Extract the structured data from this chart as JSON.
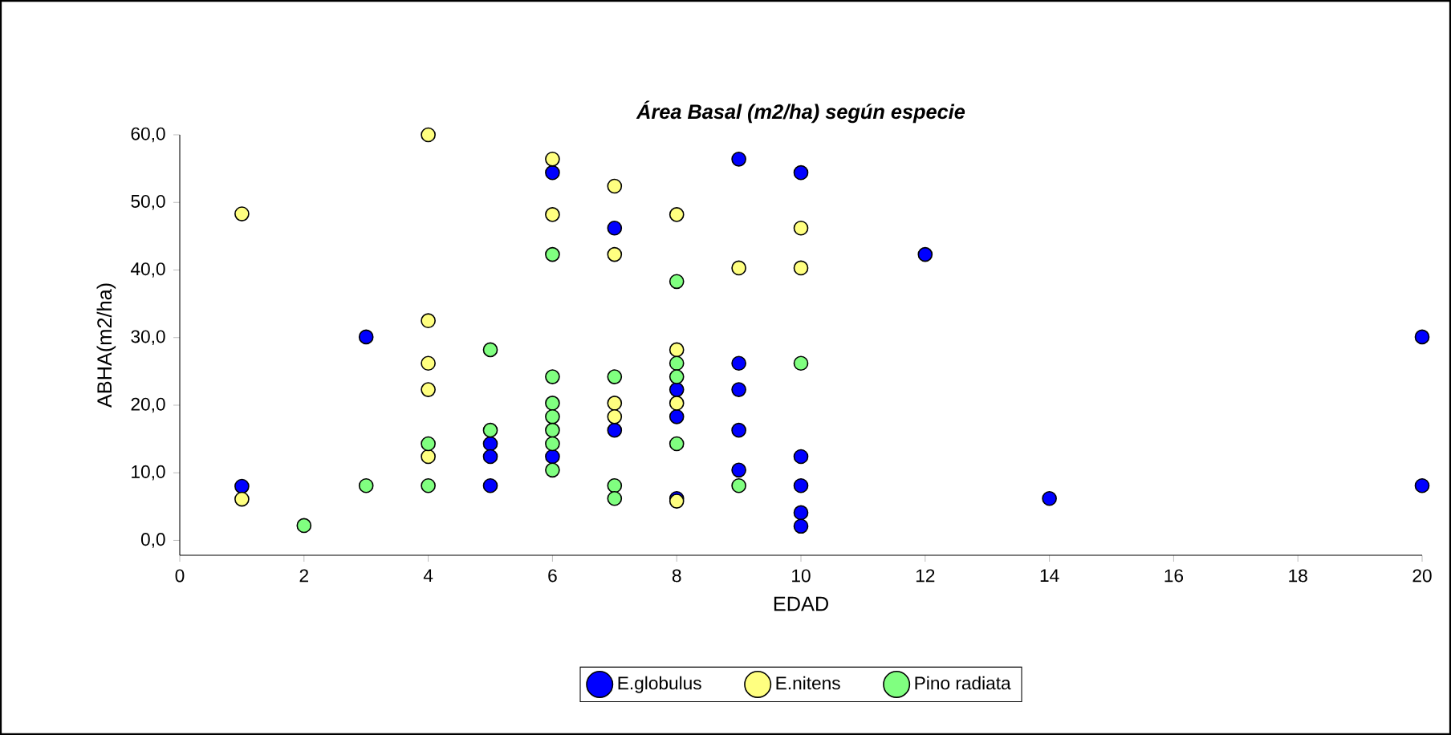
{
  "chart_data": {
    "type": "scatter",
    "title": "*Área Basal (m2/ha) según especie*",
    "xlabel": "EDAD",
    "ylabel": "ABHA(m2/ha)",
    "xlim": [
      0,
      20
    ],
    "xticks": [
      0,
      2,
      4,
      6,
      8,
      10,
      12,
      14,
      16,
      18,
      20
    ],
    "ylim": [
      -2.2,
      60
    ],
    "yticks": [
      {
        "value": 0,
        "label": "0,0"
      },
      {
        "value": 10,
        "label": "10,0"
      },
      {
        "value": 20,
        "label": "20,0"
      },
      {
        "value": 30,
        "label": "30,0"
      },
      {
        "value": 40,
        "label": "40,0"
      },
      {
        "value": 50,
        "label": "50,0"
      },
      {
        "value": 60,
        "label": "60,0"
      }
    ],
    "marker": "circle",
    "legend": "bottom",
    "series": [
      {
        "name": "E.globulus",
        "color": "#0000ff",
        "x": [
          1,
          3,
          5,
          5,
          5,
          6,
          6,
          7,
          7,
          8,
          8,
          8,
          9,
          9,
          9,
          9,
          9,
          10,
          10,
          10,
          10,
          10,
          12,
          14,
          20,
          20
        ],
        "values": [
          8.0,
          30.1,
          14.3,
          12.4,
          8.1,
          54.4,
          12.4,
          46.2,
          16.3,
          22.3,
          18.3,
          6.2,
          56.4,
          26.2,
          22.3,
          16.3,
          10.4,
          54.4,
          12.4,
          8.1,
          4.1,
          2.1,
          42.3,
          6.2,
          30.1,
          8.1
        ]
      },
      {
        "name": "E.nitens",
        "color": "#ffff80",
        "x": [
          1,
          1,
          4,
          4,
          4,
          4,
          4,
          6,
          6,
          7,
          7,
          7,
          7,
          8,
          8,
          8,
          8,
          9,
          10,
          10
        ],
        "values": [
          48.3,
          6.1,
          60.0,
          32.5,
          26.2,
          22.3,
          12.4,
          56.4,
          48.2,
          52.4,
          42.3,
          20.3,
          18.3,
          48.2,
          28.2,
          20.3,
          5.8,
          40.3,
          46.2,
          40.3
        ]
      },
      {
        "name": "Pino radiata",
        "color": "#80ff80",
        "x": [
          2,
          3,
          4,
          4,
          5,
          5,
          6,
          6,
          6,
          6,
          6,
          6,
          6,
          7,
          7,
          7,
          8,
          8,
          8,
          8,
          9,
          10
        ],
        "values": [
          2.2,
          8.1,
          14.3,
          8.1,
          28.2,
          16.3,
          42.3,
          24.2,
          20.3,
          18.3,
          16.3,
          14.3,
          10.4,
          24.2,
          8.1,
          6.2,
          38.3,
          26.2,
          24.2,
          14.3,
          8.1,
          26.2
        ]
      }
    ]
  }
}
